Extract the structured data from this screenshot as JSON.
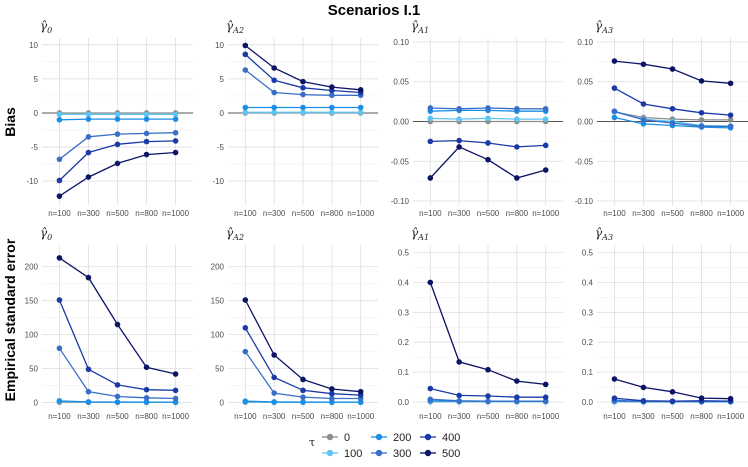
{
  "title": "Scenarios I.1",
  "row_labels": [
    "Bias",
    "Empirical standard error"
  ],
  "legend": {
    "title": "τ",
    "items": [
      {
        "label": "0",
        "color": "#8c8c8c"
      },
      {
        "label": "100",
        "color": "#5ec4f2"
      },
      {
        "label": "200",
        "color": "#1a8fe6"
      },
      {
        "label": "300",
        "color": "#3a6fc8"
      },
      {
        "label": "400",
        "color": "#1a3aa8"
      },
      {
        "label": "500",
        "color": "#0c1466"
      }
    ]
  },
  "chart_data": [
    {
      "type": "line",
      "row": 0,
      "col": 0,
      "title": "γ̂",
      "title_sub": "0",
      "categories": [
        "n=100",
        "n=300",
        "n=500",
        "n=800",
        "n=1000"
      ],
      "ylim": [
        -13.5,
        11
      ],
      "yticks": [
        -10,
        -5,
        0,
        5,
        10
      ],
      "ytick_labels": [
        "-10",
        "-5",
        "0",
        "5",
        "10"
      ],
      "hline": 0,
      "series": [
        {
          "name": "0",
          "values": [
            0,
            0,
            0,
            0,
            0
          ]
        },
        {
          "name": "100",
          "values": [
            -0.2,
            -0.2,
            -0.2,
            -0.2,
            -0.2
          ]
        },
        {
          "name": "200",
          "values": [
            -1.0,
            -0.9,
            -0.9,
            -0.9,
            -0.9
          ]
        },
        {
          "name": "300",
          "values": [
            -6.8,
            -3.5,
            -3.1,
            -3.0,
            -2.9
          ]
        },
        {
          "name": "400",
          "values": [
            -9.9,
            -5.8,
            -4.6,
            -4.2,
            -4.1
          ]
        },
        {
          "name": "500",
          "values": [
            -12.2,
            -9.4,
            -7.4,
            -6.1,
            -5.8
          ]
        }
      ]
    },
    {
      "type": "line",
      "row": 0,
      "col": 1,
      "title": "γ̂",
      "title_sub": "A2",
      "categories": [
        "n=100",
        "n=300",
        "n=500",
        "n=800",
        "n=1000"
      ],
      "ylim": [
        -13.5,
        11
      ],
      "yticks": [
        -10,
        -5,
        0,
        5,
        10
      ],
      "ytick_labels": [
        "-10",
        "-5",
        "0",
        "5",
        "10"
      ],
      "hline": 0,
      "series": [
        {
          "name": "0",
          "values": [
            0,
            0,
            0,
            0,
            0
          ]
        },
        {
          "name": "100",
          "values": [
            0.1,
            0.1,
            0.1,
            0.1,
            0.1
          ]
        },
        {
          "name": "200",
          "values": [
            0.8,
            0.8,
            0.8,
            0.8,
            0.8
          ]
        },
        {
          "name": "300",
          "values": [
            6.3,
            3.0,
            2.7,
            2.6,
            2.6
          ]
        },
        {
          "name": "400",
          "values": [
            8.6,
            4.8,
            3.7,
            3.3,
            3.0
          ]
        },
        {
          "name": "500",
          "values": [
            9.9,
            6.6,
            4.6,
            3.8,
            3.4
          ]
        }
      ]
    },
    {
      "type": "line",
      "row": 0,
      "col": 2,
      "title": "γ̂",
      "title_sub": "A1",
      "categories": [
        "n=100",
        "n=300",
        "n=500",
        "n=800",
        "n=1000"
      ],
      "ylim": [
        -0.105,
        0.105
      ],
      "yticks": [
        -0.1,
        -0.05,
        0,
        0.05,
        0.1
      ],
      "ytick_labels": [
        "-0.10",
        "-0.05",
        "0.00",
        "0.05",
        "0.10"
      ],
      "hline": 0,
      "series": [
        {
          "name": "0",
          "values": [
            0,
            0,
            0,
            0,
            0
          ]
        },
        {
          "name": "100",
          "values": [
            0.004,
            0.003,
            0.004,
            0.003,
            0.003
          ]
        },
        {
          "name": "200",
          "values": [
            0.013,
            0.014,
            0.014,
            0.013,
            0.013
          ]
        },
        {
          "name": "300",
          "values": [
            0.017,
            0.016,
            0.017,
            0.016,
            0.016
          ]
        },
        {
          "name": "400",
          "values": [
            -0.025,
            -0.024,
            -0.027,
            -0.032,
            -0.03
          ]
        },
        {
          "name": "500",
          "values": [
            -0.071,
            -0.032,
            -0.048,
            -0.071,
            -0.061
          ]
        }
      ]
    },
    {
      "type": "line",
      "row": 0,
      "col": 3,
      "title": "γ̂",
      "title_sub": "A3",
      "categories": [
        "n=100",
        "n=300",
        "n=500",
        "n=800",
        "n=1000"
      ],
      "ylim": [
        -0.105,
        0.105
      ],
      "yticks": [
        -0.1,
        -0.05,
        0,
        0.05,
        0.1
      ],
      "ytick_labels": [
        "-0.10",
        "-0.05",
        "0.00",
        "0.05",
        "0.10"
      ],
      "hline": 0,
      "series": [
        {
          "name": "0",
          "values": [
            0.012,
            0.005,
            0.003,
            0.002,
            0.002
          ]
        },
        {
          "name": "100",
          "values": [
            0.012,
            0.003,
            0.0,
            -0.005,
            -0.006
          ]
        },
        {
          "name": "200",
          "values": [
            0.005,
            -0.003,
            -0.005,
            -0.007,
            -0.008
          ]
        },
        {
          "name": "300",
          "values": [
            0.013,
            0.002,
            -0.002,
            -0.006,
            -0.006
          ]
        },
        {
          "name": "400",
          "values": [
            0.042,
            0.022,
            0.016,
            0.011,
            0.008
          ]
        },
        {
          "name": "500",
          "values": [
            0.076,
            0.072,
            0.066,
            0.051,
            0.048
          ]
        }
      ]
    },
    {
      "type": "line",
      "row": 1,
      "col": 0,
      "title": "γ̂",
      "title_sub": "0",
      "categories": [
        "n=100",
        "n=300",
        "n=500",
        "n=800",
        "n=1000"
      ],
      "ylim": [
        -8,
        232
      ],
      "yticks": [
        0,
        50,
        100,
        150,
        200
      ],
      "ytick_labels": [
        "0",
        "50",
        "100",
        "150",
        "200"
      ],
      "series": [
        {
          "name": "0",
          "values": [
            0.5,
            0.3,
            0.2,
            0.2,
            0.2
          ]
        },
        {
          "name": "100",
          "values": [
            1.5,
            0.8,
            0.6,
            0.5,
            0.5
          ]
        },
        {
          "name": "200",
          "values": [
            2.5,
            1.0,
            0.8,
            0.7,
            0.7
          ]
        },
        {
          "name": "300",
          "values": [
            80,
            16,
            9,
            7,
            6
          ]
        },
        {
          "name": "400",
          "values": [
            151,
            49,
            26,
            19,
            18
          ]
        },
        {
          "name": "500",
          "values": [
            213,
            184,
            115,
            52,
            42
          ]
        }
      ]
    },
    {
      "type": "line",
      "row": 1,
      "col": 1,
      "title": "γ̂",
      "title_sub": "A2",
      "categories": [
        "n=100",
        "n=300",
        "n=500",
        "n=800",
        "n=1000"
      ],
      "ylim": [
        -8,
        232
      ],
      "yticks": [
        0,
        50,
        100,
        150,
        200
      ],
      "ytick_labels": [
        "0",
        "50",
        "100",
        "150",
        "200"
      ],
      "series": [
        {
          "name": "0",
          "values": [
            0.5,
            0.3,
            0.2,
            0.2,
            0.2
          ]
        },
        {
          "name": "100",
          "values": [
            1.0,
            0.6,
            0.5,
            0.4,
            0.4
          ]
        },
        {
          "name": "200",
          "values": [
            2.0,
            1.0,
            0.8,
            0.7,
            0.7
          ]
        },
        {
          "name": "300",
          "values": [
            75,
            14,
            8,
            6,
            6
          ]
        },
        {
          "name": "400",
          "values": [
            110,
            37,
            18,
            13,
            11
          ]
        },
        {
          "name": "500",
          "values": [
            151,
            70,
            34,
            20,
            16
          ]
        }
      ]
    },
    {
      "type": "line",
      "row": 1,
      "col": 2,
      "title": "γ̂",
      "title_sub": "A1",
      "categories": [
        "n=100",
        "n=300",
        "n=500",
        "n=800",
        "n=1000"
      ],
      "ylim": [
        -0.02,
        0.525
      ],
      "yticks": [
        0,
        0.1,
        0.2,
        0.3,
        0.4,
        0.5
      ],
      "ytick_labels": [
        "0.0",
        "0.1",
        "0.2",
        "0.3",
        "0.4",
        "0.5"
      ],
      "series": [
        {
          "name": "0",
          "values": [
            0.001,
            0.001,
            0.001,
            0.001,
            0.001
          ]
        },
        {
          "name": "100",
          "values": [
            0.002,
            0.001,
            0.001,
            0.001,
            0.001
          ]
        },
        {
          "name": "200",
          "values": [
            0.004,
            0.002,
            0.002,
            0.002,
            0.002
          ]
        },
        {
          "name": "300",
          "values": [
            0.009,
            0.004,
            0.003,
            0.003,
            0.003
          ]
        },
        {
          "name": "400",
          "values": [
            0.045,
            0.022,
            0.02,
            0.016,
            0.016
          ]
        },
        {
          "name": "500",
          "values": [
            0.4,
            0.134,
            0.108,
            0.07,
            0.059
          ]
        }
      ]
    },
    {
      "type": "line",
      "row": 1,
      "col": 3,
      "title": "γ̂",
      "title_sub": "A3",
      "categories": [
        "n=100",
        "n=300",
        "n=500",
        "n=800",
        "n=1000"
      ],
      "ylim": [
        -0.02,
        0.525
      ],
      "yticks": [
        0,
        0.1,
        0.2,
        0.3,
        0.4,
        0.5
      ],
      "ytick_labels": [
        "0.0",
        "0.1",
        "0.2",
        "0.3",
        "0.4",
        "0.5"
      ],
      "series": [
        {
          "name": "0",
          "values": [
            0.001,
            0.001,
            0.001,
            0.001,
            0.001
          ]
        },
        {
          "name": "100",
          "values": [
            0.002,
            0.001,
            0.001,
            0.001,
            0.001
          ]
        },
        {
          "name": "200",
          "values": [
            0.003,
            0.001,
            0.001,
            0.001,
            0.001
          ]
        },
        {
          "name": "300",
          "values": [
            0.006,
            0.002,
            0.002,
            0.002,
            0.002
          ]
        },
        {
          "name": "400",
          "values": [
            0.013,
            0.004,
            0.003,
            0.004,
            0.003
          ]
        },
        {
          "name": "500",
          "values": [
            0.077,
            0.049,
            0.034,
            0.013,
            0.011
          ]
        }
      ]
    }
  ]
}
